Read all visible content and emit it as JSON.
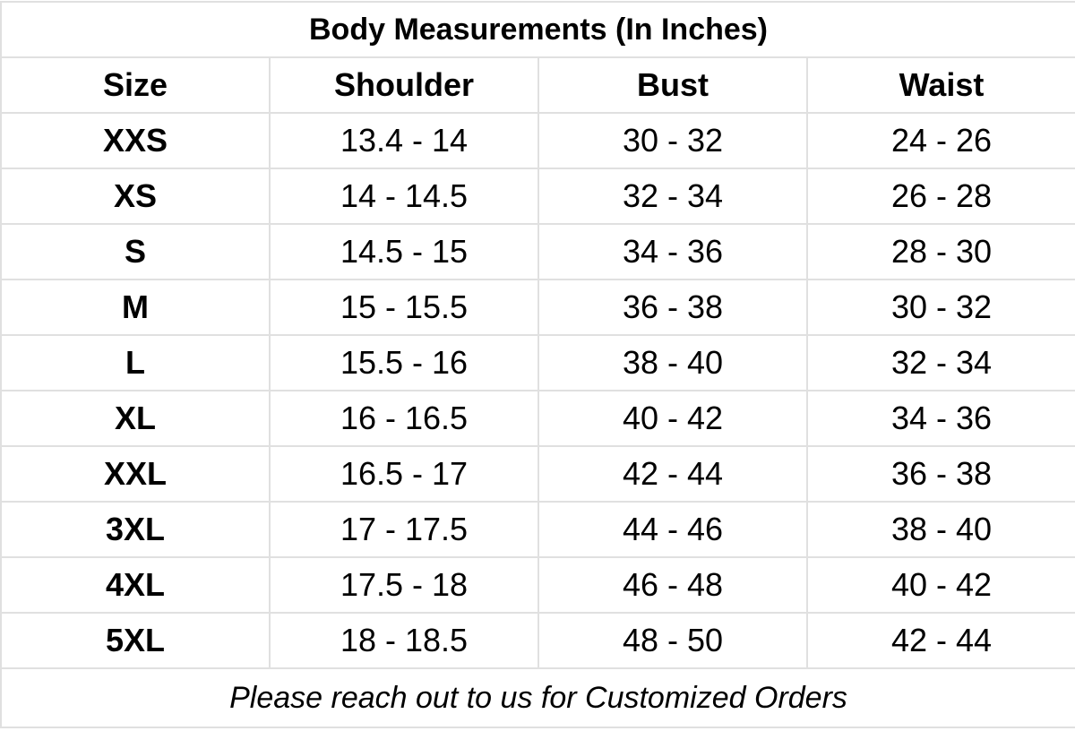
{
  "title": "Body Measurements (In Inches)",
  "columns": [
    "Size",
    "Shoulder",
    "Bust",
    "Waist"
  ],
  "rows": [
    [
      "XXS",
      "13.4 - 14",
      "30 - 32",
      "24 - 26"
    ],
    [
      "XS",
      "14 - 14.5",
      "32 - 34",
      "26 - 28"
    ],
    [
      "S",
      "14.5 - 15",
      "34 - 36",
      "28 - 30"
    ],
    [
      "M",
      "15 - 15.5",
      "36 - 38",
      "30 - 32"
    ],
    [
      "L",
      "15.5 - 16",
      "38 - 40",
      "32 - 34"
    ],
    [
      "XL",
      "16 - 16.5",
      "40 - 42",
      "34 - 36"
    ],
    [
      "XXL",
      "16.5 - 17",
      "42 - 44",
      "36 - 38"
    ],
    [
      "3XL",
      "17 - 17.5",
      "44 - 46",
      "38 - 40"
    ],
    [
      "4XL",
      "17.5 - 18",
      "46 - 48",
      "40 - 42"
    ],
    [
      "5XL",
      "18 - 18.5",
      "48 - 50",
      "42 - 44"
    ]
  ],
  "footer": "Please reach out to us for Customized Orders"
}
